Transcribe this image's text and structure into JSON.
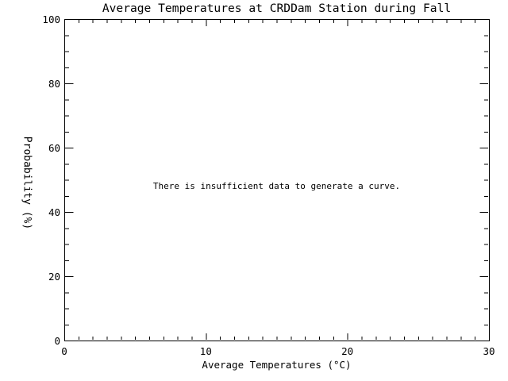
{
  "chart_data": {
    "type": "line",
    "title": "Average Temperatures at CRDDam Station during Fall",
    "xlabel": "Average Temperatures (°C)",
    "ylabel": "Probability (%)",
    "xlim": [
      0,
      30
    ],
    "ylim": [
      0,
      100
    ],
    "x_ticks": [
      0,
      10,
      20,
      30
    ],
    "x_tick_labels": [
      "0",
      "10",
      "20",
      "30"
    ],
    "x_minor_tick_interval": 1,
    "y_ticks": [
      0,
      20,
      40,
      60,
      80,
      100
    ],
    "y_tick_labels": [
      "0",
      "20",
      "40",
      "60",
      "80",
      "100"
    ],
    "y_minor_tick_interval": 5,
    "grid": false,
    "legend": null,
    "series": [],
    "annotation": "There is insufficient data to generate a curve.",
    "annotation_position": {
      "x": 15,
      "y": 48
    },
    "background_color": "#ffffff",
    "axis_color": "#000000",
    "text_color": "#000000"
  }
}
